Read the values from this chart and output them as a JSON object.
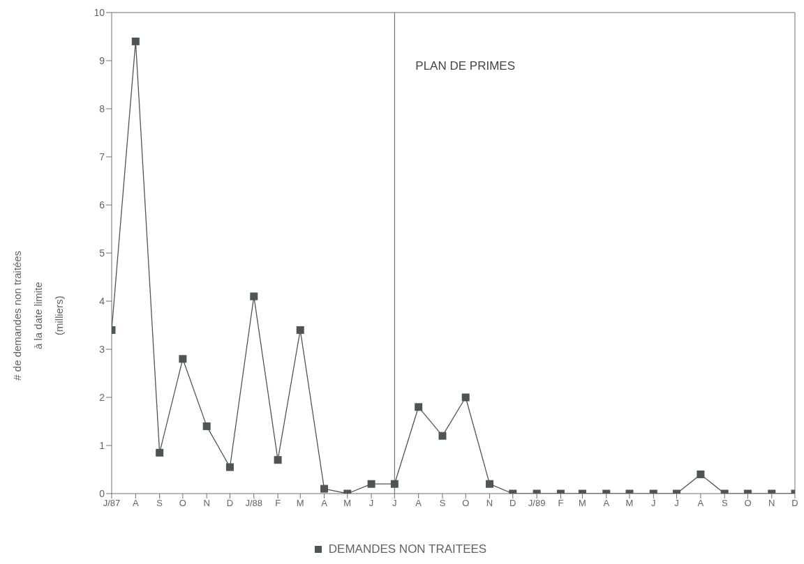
{
  "chart_data": {
    "type": "line",
    "ylabel": "# de demandes non traitées\nà la date limite\n(milliers)",
    "x": [
      "1987-07",
      "1987-08",
      "1987-09",
      "1987-10",
      "1987-11",
      "1987-12",
      "1988-01",
      "1988-02",
      "1988-03",
      "1988-04",
      "1988-05",
      "1988-06",
      "1988-07",
      "1988-08",
      "1988-09",
      "1988-10",
      "1988-11",
      "1988-12",
      "1989-01",
      "1989-02",
      "1989-03",
      "1989-04",
      "1989-05",
      "1989-06",
      "1989-07",
      "1989-08",
      "1989-09",
      "1989-10",
      "1989-11",
      "1989-12"
    ],
    "series": [
      {
        "name": "DEMANDES NON TRAITEES",
        "color": "#4d5650",
        "values": [
          3.4,
          9.4,
          0.85,
          2.8,
          1.4,
          0.55,
          4.1,
          0.7,
          3.4,
          0.1,
          0,
          0.2,
          0.2,
          1.8,
          1.2,
          2.0,
          0.2,
          0,
          0,
          0,
          0,
          0,
          0,
          0,
          0,
          0.4,
          0,
          0,
          0,
          0
        ]
      }
    ],
    "xlim": [
      "1987-07",
      "1989-12"
    ],
    "xticks": [
      {
        "value": "1987-07",
        "label": "J/87"
      },
      {
        "value": "1987-08",
        "label": "A"
      },
      {
        "value": "1987-09",
        "label": "S"
      },
      {
        "value": "1987-10",
        "label": "O"
      },
      {
        "value": "1987-11",
        "label": "N"
      },
      {
        "value": "1987-12",
        "label": "D"
      },
      {
        "value": "1988-01",
        "label": "J/88"
      },
      {
        "value": "1988-02",
        "label": "F"
      },
      {
        "value": "1988-03",
        "label": "M"
      },
      {
        "value": "1988-04",
        "label": "A"
      },
      {
        "value": "1988-05",
        "label": "M"
      },
      {
        "value": "1988-06",
        "label": "J"
      },
      {
        "value": "1988-07",
        "label": "J"
      },
      {
        "value": "1988-08",
        "label": "A"
      },
      {
        "value": "1988-09",
        "label": "S"
      },
      {
        "value": "1988-10",
        "label": "O"
      },
      {
        "value": "1988-11",
        "label": "N"
      },
      {
        "value": "1988-12",
        "label": "D"
      },
      {
        "value": "1989-01",
        "label": "J/89"
      },
      {
        "value": "1989-02",
        "label": "F"
      },
      {
        "value": "1989-03",
        "label": "M"
      },
      {
        "value": "1989-04",
        "label": "A"
      },
      {
        "value": "1989-05",
        "label": "M"
      },
      {
        "value": "1989-06",
        "label": "J"
      },
      {
        "value": "1989-07",
        "label": "J"
      },
      {
        "value": "1989-08",
        "label": "A"
      },
      {
        "value": "1989-09",
        "label": "S"
      },
      {
        "value": "1989-10",
        "label": "O"
      },
      {
        "value": "1989-11",
        "label": "N"
      },
      {
        "value": "1989-12",
        "label": "D"
      }
    ],
    "ylim": [
      0,
      10
    ],
    "yticks": [
      0,
      1,
      2,
      3,
      4,
      5,
      6,
      7,
      8,
      9,
      10
    ],
    "ref_lines": [
      {
        "axis": "x",
        "value": "1988-07",
        "label": "PLAN DE PRIMES",
        "color": "#5a605c"
      }
    ],
    "grid": false,
    "legend": "bottom",
    "marker": "square",
    "line_style": "solid"
  }
}
